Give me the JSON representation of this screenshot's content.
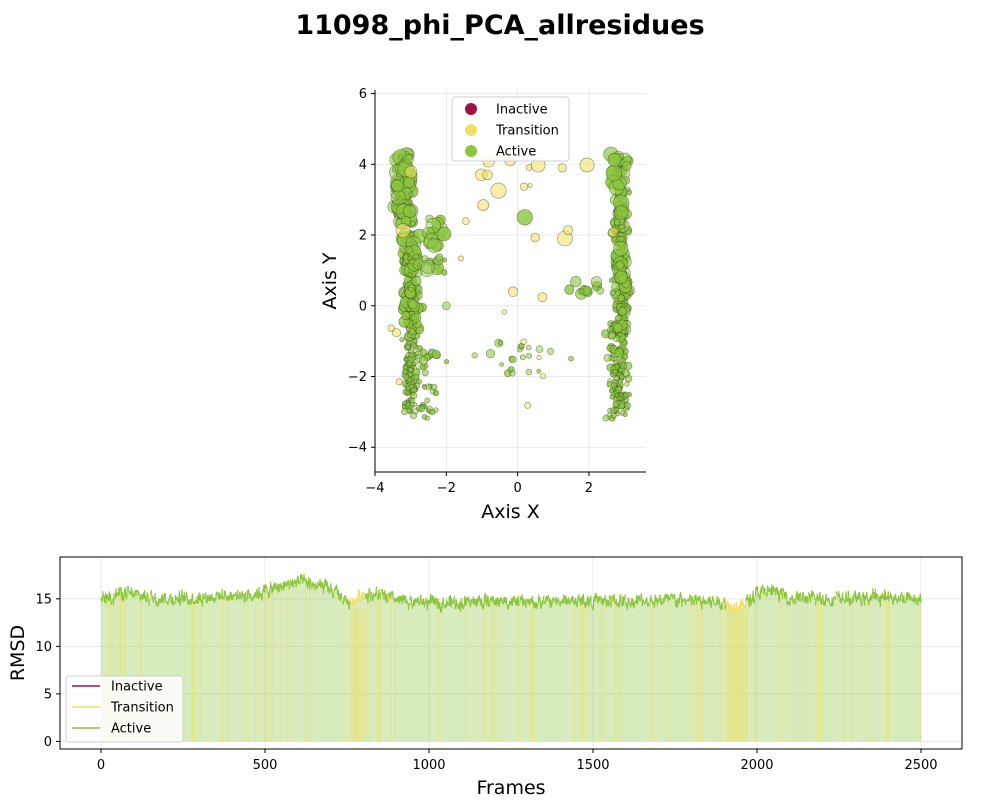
{
  "figure_title": "11098_phi_PCA_allresidues",
  "colors": {
    "inactive": "#a50f45",
    "transition": "#f2e060",
    "active": "#8cc63f"
  },
  "chart_data": [
    {
      "type": "scatter",
      "title": "",
      "xlabel": "Axis X",
      "ylabel": "Axis Y",
      "xlim": [
        -4,
        3.6
      ],
      "ylim": [
        -4.7,
        6.1
      ],
      "xticks": [
        -4,
        -2,
        0,
        2
      ],
      "yticks": [
        -4,
        -2,
        0,
        2,
        4,
        6
      ],
      "grid": true,
      "legend": {
        "placement": "top-center",
        "entries": [
          "Inactive",
          "Transition",
          "Active"
        ]
      },
      "point_clusters": [
        {
          "name": "left upper band",
          "state": "Active",
          "x_center": -3.2,
          "x_spread": 0.25,
          "y_range": [
            2.3,
            4.3
          ],
          "count": 90
        },
        {
          "name": "left column",
          "state": "Active",
          "x_center": -3.0,
          "x_spread": 0.22,
          "y_range": [
            -3.0,
            2.0
          ],
          "count": 230
        },
        {
          "name": "left mid branch",
          "state": "Active",
          "x_center": -2.3,
          "x_spread": 0.3,
          "y_range": [
            0.9,
            2.5
          ],
          "count": 25
        },
        {
          "name": "left lower spread",
          "state": "Active",
          "x_center": -2.5,
          "x_spread": 0.4,
          "y_range": [
            -3.2,
            -1.2
          ],
          "count": 35
        },
        {
          "name": "bridge",
          "state": "Active",
          "x_center": 0.0,
          "x_spread": 1.2,
          "y_range": [
            -2.0,
            -1.0
          ],
          "count": 22
        },
        {
          "name": "right column",
          "state": "Active",
          "x_center": 2.9,
          "x_spread": 0.22,
          "y_range": [
            -2.9,
            4.3
          ],
          "count": 280
        },
        {
          "name": "right lower cluster",
          "state": "Active",
          "x_center": 2.7,
          "x_spread": 0.3,
          "y_range": [
            -3.2,
            -0.5
          ],
          "count": 50
        },
        {
          "name": "right left arm",
          "state": "Active",
          "x_center": 1.9,
          "x_spread": 0.3,
          "y_range": [
            0.3,
            0.8
          ],
          "count": 12
        },
        {
          "name": "transition scatter",
          "state": "Transition",
          "x_center": 0,
          "x_spread": 3.2,
          "y_range": [
            -3.0,
            4.2
          ],
          "count": 30
        }
      ],
      "isolated_points": [
        {
          "x": 0.2,
          "y": 2.5,
          "state": "Active"
        },
        {
          "x": -2.0,
          "y": 0.0,
          "state": "Active"
        }
      ]
    },
    {
      "type": "line",
      "title": "",
      "xlabel": "Frames",
      "ylabel": "RMSD",
      "xlim": [
        -125,
        2625
      ],
      "ylim": [
        -0.8,
        19.4
      ],
      "xticks": [
        0,
        500,
        1000,
        1500,
        2000,
        2500
      ],
      "yticks": [
        0,
        5,
        10,
        15
      ],
      "grid": true,
      "legend": {
        "placement": "bottom-left",
        "entries": [
          "Inactive",
          "Transition",
          "Active"
        ]
      },
      "frames": 2500,
      "series": [
        {
          "name": "RMSD",
          "state": "Active",
          "baseline": 15.0,
          "noise_amplitude": 1.0,
          "keypoints": [
            [
              0,
              15.0
            ],
            [
              60,
              15.6
            ],
            [
              150,
              15.2
            ],
            [
              250,
              15.0
            ],
            [
              350,
              15.3
            ],
            [
              450,
              15.4
            ],
            [
              520,
              16.0
            ],
            [
              600,
              16.8
            ],
            [
              680,
              16.2
            ],
            [
              720,
              15.5
            ],
            [
              760,
              14.4
            ],
            [
              800,
              15.6
            ],
            [
              850,
              15.4
            ],
            [
              900,
              14.8
            ],
            [
              1000,
              14.6
            ],
            [
              1100,
              14.6
            ],
            [
              1200,
              14.8
            ],
            [
              1300,
              14.6
            ],
            [
              1400,
              14.8
            ],
            [
              1500,
              14.8
            ],
            [
              1600,
              14.7
            ],
            [
              1700,
              14.9
            ],
            [
              1800,
              14.8
            ],
            [
              1900,
              14.6
            ],
            [
              1950,
              14.2
            ],
            [
              2000,
              15.6
            ],
            [
              2050,
              15.8
            ],
            [
              2100,
              15.1
            ],
            [
              2200,
              15.0
            ],
            [
              2300,
              15.0
            ],
            [
              2400,
              15.2
            ],
            [
              2500,
              15.0
            ]
          ]
        }
      ],
      "transition_frames": [
        [
          760,
          805
        ],
        [
          1905,
          1965
        ]
      ]
    }
  ]
}
